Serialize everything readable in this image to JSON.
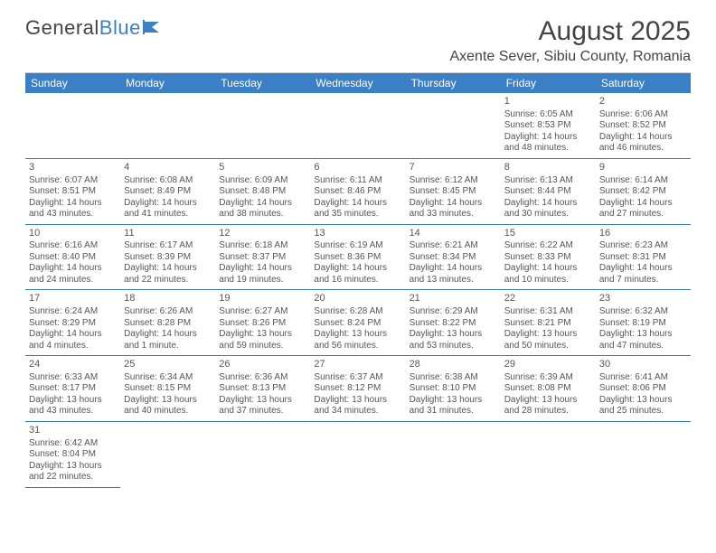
{
  "logo": {
    "text1": "General",
    "text2": "Blue"
  },
  "header": {
    "month_title": "August 2025",
    "location": "Axente Sever, Sibiu County, Romania"
  },
  "day_headers": [
    "Sunday",
    "Monday",
    "Tuesday",
    "Wednesday",
    "Thursday",
    "Friday",
    "Saturday"
  ],
  "colors": {
    "header_bg": "#3b7fc4",
    "header_text": "#ffffff",
    "rule": "#357abd",
    "text": "#555555"
  },
  "leading_blanks": 5,
  "days": [
    {
      "n": "1",
      "sr": "Sunrise: 6:05 AM",
      "ss": "Sunset: 8:53 PM",
      "dl1": "Daylight: 14 hours",
      "dl2": "and 48 minutes."
    },
    {
      "n": "2",
      "sr": "Sunrise: 6:06 AM",
      "ss": "Sunset: 8:52 PM",
      "dl1": "Daylight: 14 hours",
      "dl2": "and 46 minutes."
    },
    {
      "n": "3",
      "sr": "Sunrise: 6:07 AM",
      "ss": "Sunset: 8:51 PM",
      "dl1": "Daylight: 14 hours",
      "dl2": "and 43 minutes."
    },
    {
      "n": "4",
      "sr": "Sunrise: 6:08 AM",
      "ss": "Sunset: 8:49 PM",
      "dl1": "Daylight: 14 hours",
      "dl2": "and 41 minutes."
    },
    {
      "n": "5",
      "sr": "Sunrise: 6:09 AM",
      "ss": "Sunset: 8:48 PM",
      "dl1": "Daylight: 14 hours",
      "dl2": "and 38 minutes."
    },
    {
      "n": "6",
      "sr": "Sunrise: 6:11 AM",
      "ss": "Sunset: 8:46 PM",
      "dl1": "Daylight: 14 hours",
      "dl2": "and 35 minutes."
    },
    {
      "n": "7",
      "sr": "Sunrise: 6:12 AM",
      "ss": "Sunset: 8:45 PM",
      "dl1": "Daylight: 14 hours",
      "dl2": "and 33 minutes."
    },
    {
      "n": "8",
      "sr": "Sunrise: 6:13 AM",
      "ss": "Sunset: 8:44 PM",
      "dl1": "Daylight: 14 hours",
      "dl2": "and 30 minutes."
    },
    {
      "n": "9",
      "sr": "Sunrise: 6:14 AM",
      "ss": "Sunset: 8:42 PM",
      "dl1": "Daylight: 14 hours",
      "dl2": "and 27 minutes."
    },
    {
      "n": "10",
      "sr": "Sunrise: 6:16 AM",
      "ss": "Sunset: 8:40 PM",
      "dl1": "Daylight: 14 hours",
      "dl2": "and 24 minutes."
    },
    {
      "n": "11",
      "sr": "Sunrise: 6:17 AM",
      "ss": "Sunset: 8:39 PM",
      "dl1": "Daylight: 14 hours",
      "dl2": "and 22 minutes."
    },
    {
      "n": "12",
      "sr": "Sunrise: 6:18 AM",
      "ss": "Sunset: 8:37 PM",
      "dl1": "Daylight: 14 hours",
      "dl2": "and 19 minutes."
    },
    {
      "n": "13",
      "sr": "Sunrise: 6:19 AM",
      "ss": "Sunset: 8:36 PM",
      "dl1": "Daylight: 14 hours",
      "dl2": "and 16 minutes."
    },
    {
      "n": "14",
      "sr": "Sunrise: 6:21 AM",
      "ss": "Sunset: 8:34 PM",
      "dl1": "Daylight: 14 hours",
      "dl2": "and 13 minutes."
    },
    {
      "n": "15",
      "sr": "Sunrise: 6:22 AM",
      "ss": "Sunset: 8:33 PM",
      "dl1": "Daylight: 14 hours",
      "dl2": "and 10 minutes."
    },
    {
      "n": "16",
      "sr": "Sunrise: 6:23 AM",
      "ss": "Sunset: 8:31 PM",
      "dl1": "Daylight: 14 hours",
      "dl2": "and 7 minutes."
    },
    {
      "n": "17",
      "sr": "Sunrise: 6:24 AM",
      "ss": "Sunset: 8:29 PM",
      "dl1": "Daylight: 14 hours",
      "dl2": "and 4 minutes."
    },
    {
      "n": "18",
      "sr": "Sunrise: 6:26 AM",
      "ss": "Sunset: 8:28 PM",
      "dl1": "Daylight: 14 hours",
      "dl2": "and 1 minute."
    },
    {
      "n": "19",
      "sr": "Sunrise: 6:27 AM",
      "ss": "Sunset: 8:26 PM",
      "dl1": "Daylight: 13 hours",
      "dl2": "and 59 minutes."
    },
    {
      "n": "20",
      "sr": "Sunrise: 6:28 AM",
      "ss": "Sunset: 8:24 PM",
      "dl1": "Daylight: 13 hours",
      "dl2": "and 56 minutes."
    },
    {
      "n": "21",
      "sr": "Sunrise: 6:29 AM",
      "ss": "Sunset: 8:22 PM",
      "dl1": "Daylight: 13 hours",
      "dl2": "and 53 minutes."
    },
    {
      "n": "22",
      "sr": "Sunrise: 6:31 AM",
      "ss": "Sunset: 8:21 PM",
      "dl1": "Daylight: 13 hours",
      "dl2": "and 50 minutes."
    },
    {
      "n": "23",
      "sr": "Sunrise: 6:32 AM",
      "ss": "Sunset: 8:19 PM",
      "dl1": "Daylight: 13 hours",
      "dl2": "and 47 minutes."
    },
    {
      "n": "24",
      "sr": "Sunrise: 6:33 AM",
      "ss": "Sunset: 8:17 PM",
      "dl1": "Daylight: 13 hours",
      "dl2": "and 43 minutes."
    },
    {
      "n": "25",
      "sr": "Sunrise: 6:34 AM",
      "ss": "Sunset: 8:15 PM",
      "dl1": "Daylight: 13 hours",
      "dl2": "and 40 minutes."
    },
    {
      "n": "26",
      "sr": "Sunrise: 6:36 AM",
      "ss": "Sunset: 8:13 PM",
      "dl1": "Daylight: 13 hours",
      "dl2": "and 37 minutes."
    },
    {
      "n": "27",
      "sr": "Sunrise: 6:37 AM",
      "ss": "Sunset: 8:12 PM",
      "dl1": "Daylight: 13 hours",
      "dl2": "and 34 minutes."
    },
    {
      "n": "28",
      "sr": "Sunrise: 6:38 AM",
      "ss": "Sunset: 8:10 PM",
      "dl1": "Daylight: 13 hours",
      "dl2": "and 31 minutes."
    },
    {
      "n": "29",
      "sr": "Sunrise: 6:39 AM",
      "ss": "Sunset: 8:08 PM",
      "dl1": "Daylight: 13 hours",
      "dl2": "and 28 minutes."
    },
    {
      "n": "30",
      "sr": "Sunrise: 6:41 AM",
      "ss": "Sunset: 8:06 PM",
      "dl1": "Daylight: 13 hours",
      "dl2": "and 25 minutes."
    },
    {
      "n": "31",
      "sr": "Sunrise: 6:42 AM",
      "ss": "Sunset: 8:04 PM",
      "dl1": "Daylight: 13 hours",
      "dl2": "and 22 minutes."
    }
  ]
}
